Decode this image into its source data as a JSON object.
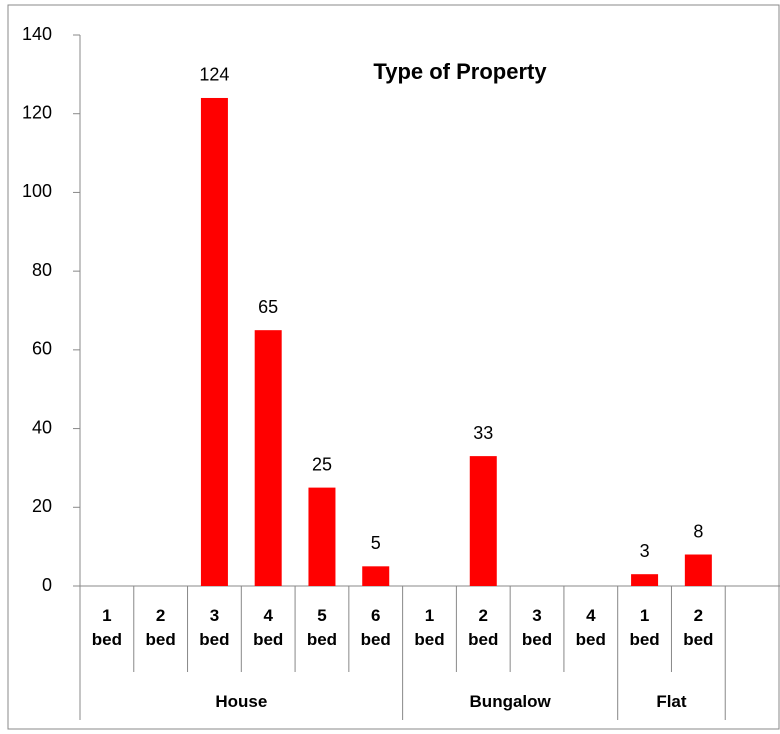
{
  "chart_data": {
    "type": "bar",
    "title": "Type of Property",
    "groups": [
      {
        "name": "House",
        "categories": [
          "1 bed",
          "2 bed",
          "3 bed",
          "4 bed",
          "5 bed",
          "6 bed"
        ],
        "values": [
          null,
          null,
          124,
          65,
          25,
          5
        ]
      },
      {
        "name": "Bungalow",
        "categories": [
          "1 bed",
          "2 bed",
          "3 bed",
          "4 bed"
        ],
        "values": [
          null,
          33,
          null,
          null
        ]
      },
      {
        "name": "Flat",
        "categories": [
          "1 bed",
          "2 bed"
        ],
        "values": [
          3,
          8
        ]
      },
      {
        "name": null,
        "categories": [
          null
        ],
        "values": [
          null
        ]
      }
    ],
    "color": "#ff0000",
    "ylim": [
      0,
      140
    ],
    "yticks": [
      0,
      20,
      40,
      60,
      80,
      100,
      120,
      140
    ],
    "grid": false
  }
}
